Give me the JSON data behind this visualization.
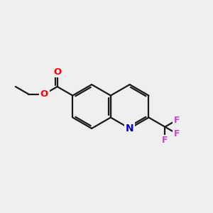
{
  "bg_color": "#efefef",
  "bond_color": "#1a1a1a",
  "bond_width": 1.6,
  "atom_colors": {
    "O": "#ff0000",
    "N": "#0000cc",
    "F": "#cc44cc",
    "C": "#1a1a1a"
  },
  "figsize": [
    3.0,
    3.0
  ],
  "dpi": 100,
  "xlim": [
    0,
    10
  ],
  "ylim": [
    0,
    10
  ]
}
